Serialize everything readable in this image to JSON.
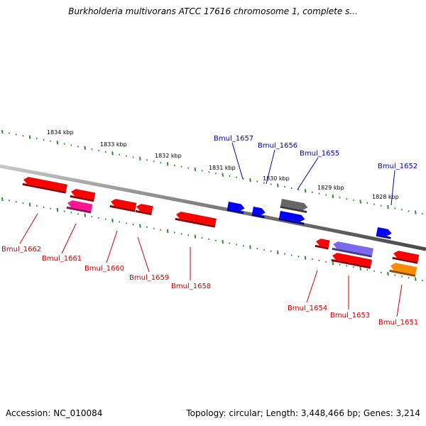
{
  "title": "Burkholderia multivorans ATCC 17616 chromosome 1, complete s...",
  "footer": {
    "accession": "Accession: NC_010084",
    "summary": "Topology: circular; Length: 3,448,466 bp; Genes: 3,214"
  },
  "colors": {
    "backbone": "#808080",
    "tick": "#2e8b2e",
    "minus_strand_label": "#cc0000",
    "plus_strand_label": "#0000b0"
  },
  "scale_labels": [
    "1834 kbp",
    "1833 kbp",
    "1832 kbp",
    "1831 kbp",
    "1830 kbp",
    "1829 kbp",
    "1828 kbp"
  ],
  "genes": [
    {
      "name": "Bmul_1662",
      "strand": "-",
      "color": "#ff0000"
    },
    {
      "name": "Bmul_1661",
      "strand": "-",
      "color": "#ff1493"
    },
    {
      "name": "Bmul_1660",
      "strand": "-",
      "color": "#ff0000"
    },
    {
      "name": "Bmul_1659",
      "strand": "-",
      "color": "#ff0000"
    },
    {
      "name": "Bmul_1658",
      "strand": "-",
      "color": "#ff0000"
    },
    {
      "name": "Bmul_1657",
      "strand": "+",
      "color": "#0000ff"
    },
    {
      "name": "Bmul_1656",
      "strand": "+",
      "color": "#0000ff"
    },
    {
      "name": "Bmul_1655",
      "strand": "+",
      "color": "#0000ff"
    },
    {
      "name": "Bmul_1654",
      "strand": "-",
      "color": "#ff0000"
    },
    {
      "name": "Bmul_1653",
      "strand": "-",
      "color": "#7b68ee"
    },
    {
      "name": "Bmul_1652",
      "strand": "+",
      "color": "#0000ff"
    },
    {
      "name": "Bmul_1651",
      "strand": "-",
      "color": "#ff8c00"
    }
  ],
  "unlabeled_features": [
    {
      "strand": "-",
      "color": "#ff0000"
    },
    {
      "strand": "-",
      "color": "#ff0000"
    },
    {
      "strand": "-",
      "color": "#ff0000"
    },
    {
      "strand": "+",
      "color": "#666666"
    }
  ]
}
